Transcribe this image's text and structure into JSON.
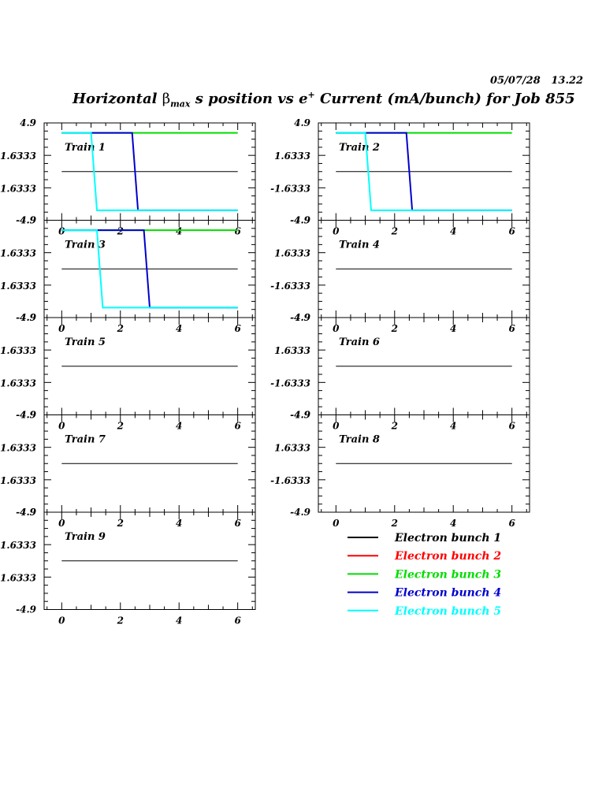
{
  "header": {
    "date": "05/07/28",
    "time": "13.22",
    "title": {
      "pre": "Horizontal ",
      "symbol": "β",
      "sub": "max",
      "mid": " s position vs e",
      "sup": "+",
      "post": " Current (mA/bunch) for Job 855"
    }
  },
  "chart_data": {
    "type": "line",
    "layout": "small-multiples, 2 columns",
    "xlim": [
      -0.6,
      6.6
    ],
    "ylim": [
      -4.9,
      4.9
    ],
    "x_ticks": [
      0,
      2,
      4,
      6
    ],
    "x_tick_labels": [
      "0",
      "2",
      "4",
      "6"
    ],
    "y_ticks": [
      4.9,
      1.6333,
      -1.6333,
      -4.9
    ],
    "y_tick_labels": [
      "4.9",
      "1.6333",
      "-1.6333",
      "-4.9"
    ],
    "legend": {
      "placement": "bottom-right",
      "entries": [
        {
          "label": "Electron bunch 1",
          "color": "#000000"
        },
        {
          "label": "Electron bunch 2",
          "color": "#ff0000"
        },
        {
          "label": "Electron bunch 3",
          "color": "#00dd00"
        },
        {
          "label": "Electron bunch 4",
          "color": "#0000cc"
        },
        {
          "label": "Electron bunch 5",
          "color": "#00ffff"
        }
      ]
    },
    "panels": [
      {
        "label": "Train 1",
        "series": [
          {
            "bunch": 1,
            "x": [
              0,
              6
            ],
            "y": [
              0,
              0
            ]
          },
          {
            "bunch": 3,
            "x": [
              0,
              6
            ],
            "y": [
              3.9,
              3.9
            ]
          },
          {
            "bunch": 4,
            "x": [
              0,
              2.4,
              2.6,
              6
            ],
            "y": [
              3.9,
              3.9,
              -3.9,
              -3.9
            ]
          },
          {
            "bunch": 5,
            "x": [
              0,
              1.0,
              1.2,
              6
            ],
            "y": [
              3.9,
              3.9,
              -3.9,
              -3.9
            ]
          }
        ]
      },
      {
        "label": "Train 2",
        "series": [
          {
            "bunch": 1,
            "x": [
              0,
              6
            ],
            "y": [
              0,
              0
            ]
          },
          {
            "bunch": 3,
            "x": [
              0,
              6
            ],
            "y": [
              3.9,
              3.9
            ]
          },
          {
            "bunch": 4,
            "x": [
              0,
              2.4,
              2.6,
              6
            ],
            "y": [
              3.9,
              3.9,
              -3.9,
              -3.9
            ]
          },
          {
            "bunch": 5,
            "x": [
              0,
              1.0,
              1.2,
              6
            ],
            "y": [
              3.9,
              3.9,
              -3.9,
              -3.9
            ]
          }
        ]
      },
      {
        "label": "Train 3",
        "series": [
          {
            "bunch": 1,
            "x": [
              0,
              6
            ],
            "y": [
              0,
              0
            ]
          },
          {
            "bunch": 3,
            "x": [
              0,
              6
            ],
            "y": [
              3.9,
              3.9
            ]
          },
          {
            "bunch": 4,
            "x": [
              0,
              2.8,
              3.0,
              6
            ],
            "y": [
              3.9,
              3.9,
              -3.9,
              -3.9
            ]
          },
          {
            "bunch": 5,
            "x": [
              0,
              1.2,
              1.4,
              6
            ],
            "y": [
              3.9,
              3.9,
              -3.9,
              -3.9
            ]
          }
        ]
      },
      {
        "label": "Train 4",
        "series": [
          {
            "bunch": 1,
            "x": [
              0,
              6
            ],
            "y": [
              0,
              0
            ]
          }
        ]
      },
      {
        "label": "Train 5",
        "series": [
          {
            "bunch": 1,
            "x": [
              0,
              6
            ],
            "y": [
              0,
              0
            ]
          }
        ]
      },
      {
        "label": "Train 6",
        "series": [
          {
            "bunch": 1,
            "x": [
              0,
              6
            ],
            "y": [
              0,
              0
            ]
          }
        ]
      },
      {
        "label": "Train 7",
        "series": [
          {
            "bunch": 1,
            "x": [
              0,
              6
            ],
            "y": [
              0,
              0
            ]
          }
        ]
      },
      {
        "label": "Train 8",
        "series": [
          {
            "bunch": 1,
            "x": [
              0,
              6
            ],
            "y": [
              0,
              0
            ]
          }
        ]
      },
      {
        "label": "Train 9",
        "series": [
          {
            "bunch": 1,
            "x": [
              0,
              6
            ],
            "y": [
              0,
              0
            ]
          }
        ]
      }
    ]
  }
}
